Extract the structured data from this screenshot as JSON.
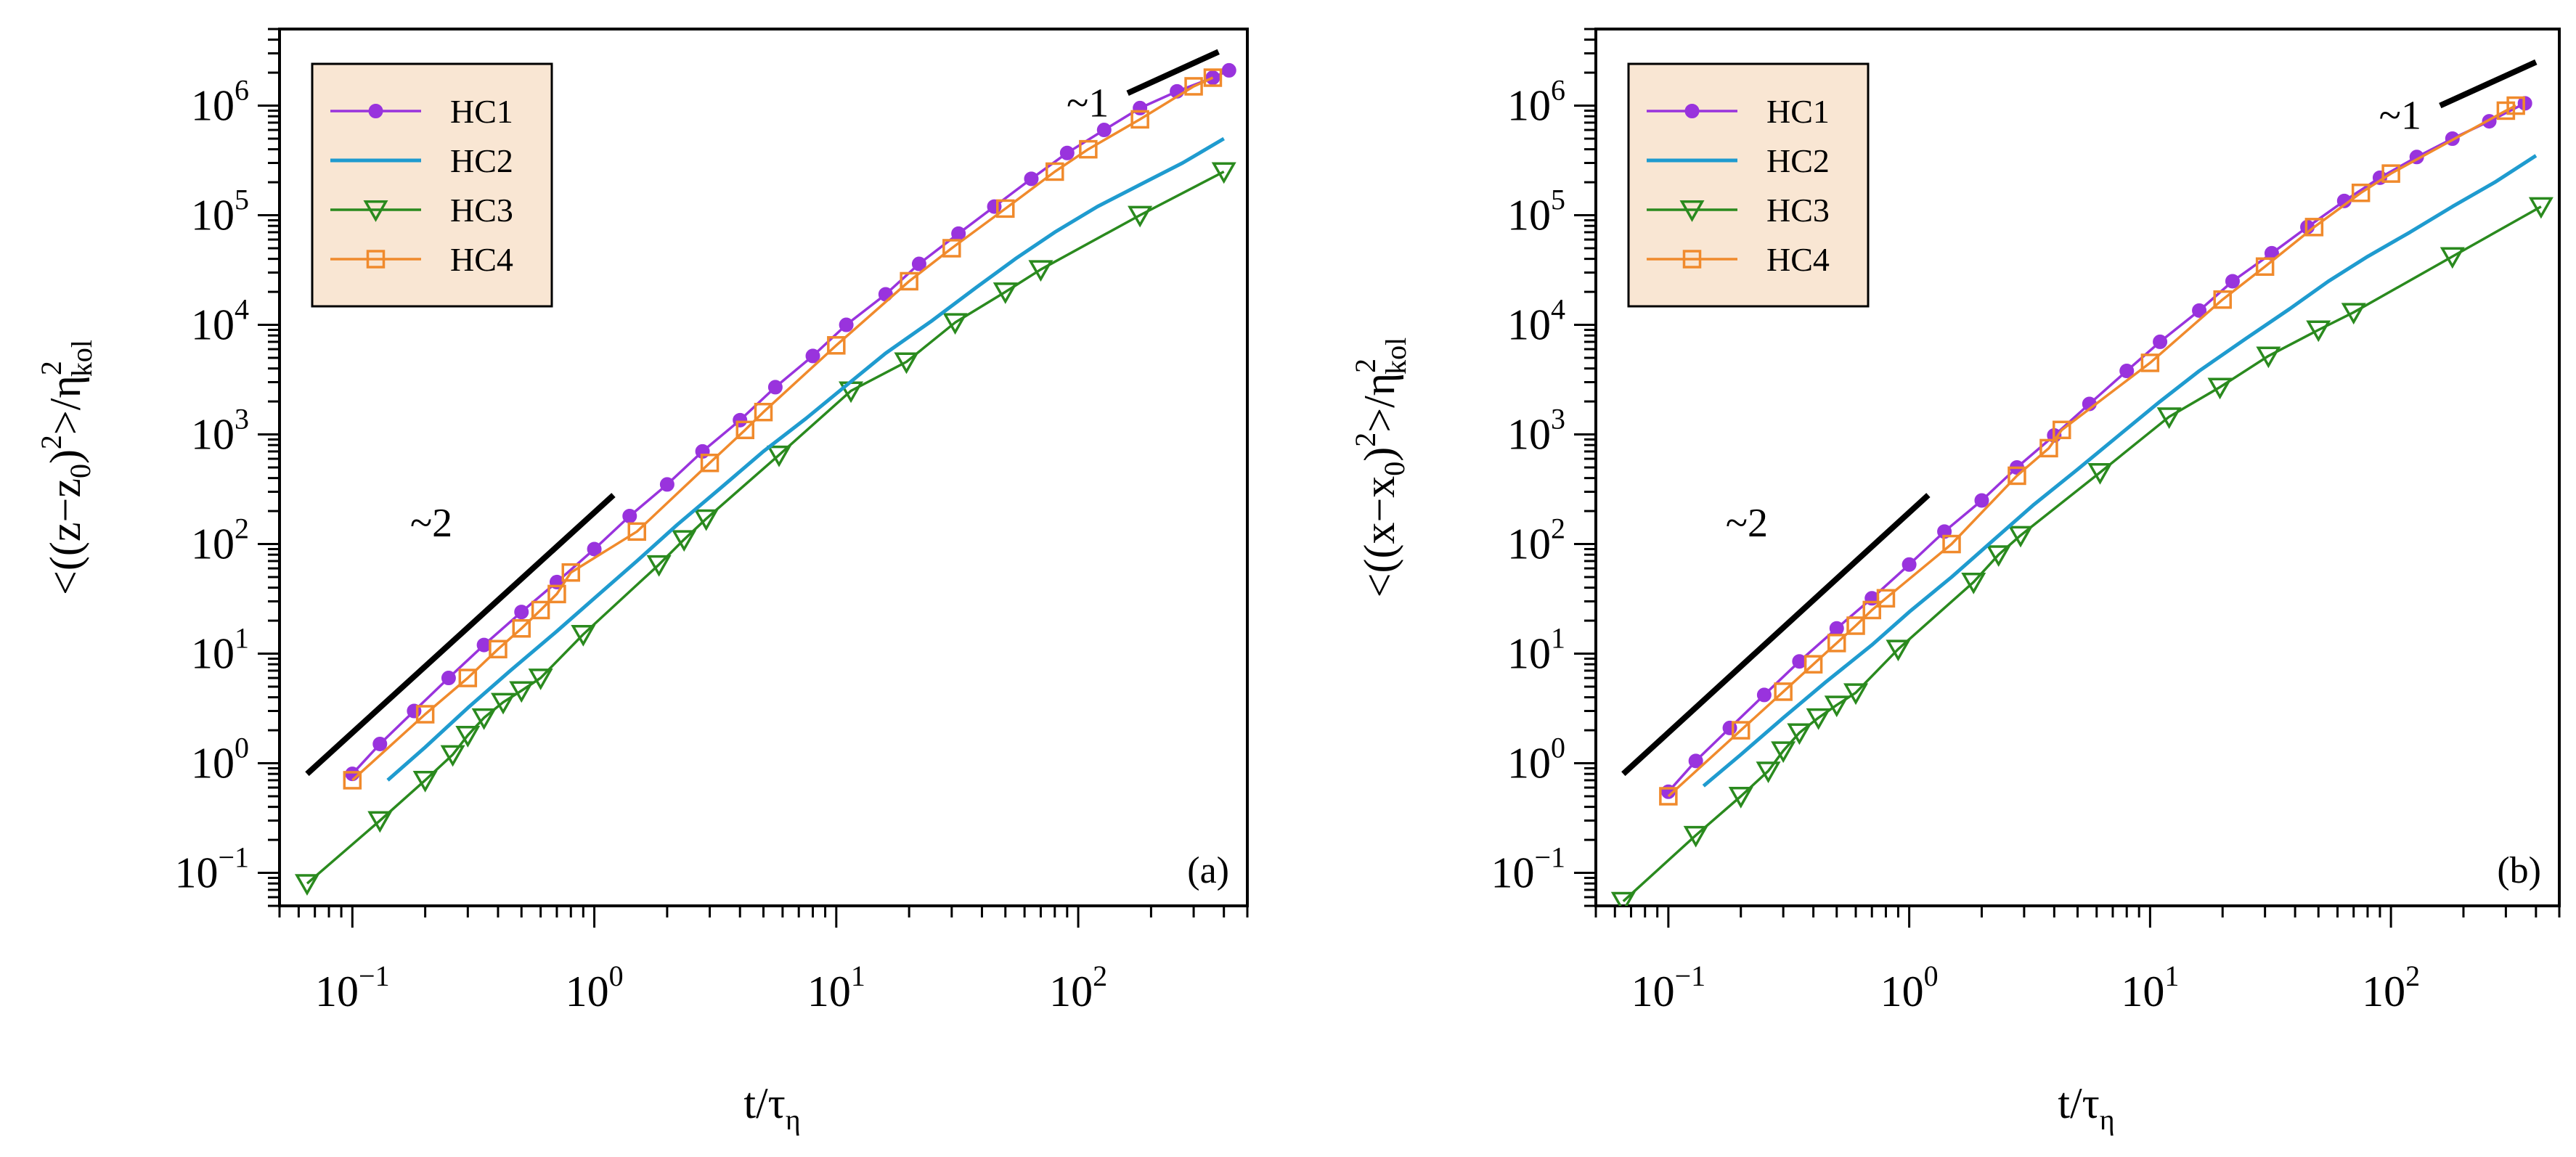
{
  "chart_data": [
    {
      "type": "line",
      "panel_label": "(a)",
      "xlabel": {
        "base": "t/τ",
        "sub": "η"
      },
      "ylabel": {
        "pre": "<((z−z",
        "sub0": "0",
        "mid": ")",
        "sup": "2",
        "post": ">/η",
        "sub": "kol",
        "sup2": "2"
      },
      "xscale": "log",
      "yscale": "log",
      "xlim": [
        0.05,
        500
      ],
      "ylim": [
        0.05,
        5000000
      ],
      "xticks": [
        {
          "base": "10",
          "exp": "−1",
          "value": 0.1
        },
        {
          "base": "10",
          "exp": "0",
          "value": 1
        },
        {
          "base": "10",
          "exp": "1",
          "value": 10
        },
        {
          "base": "10",
          "exp": "2",
          "value": 100
        }
      ],
      "yticks": [
        {
          "base": "10",
          "exp": "−1",
          "value": 0.1
        },
        {
          "base": "10",
          "exp": "0",
          "value": 1
        },
        {
          "base": "10",
          "exp": "1",
          "value": 10
        },
        {
          "base": "10",
          "exp": "2",
          "value": 100
        },
        {
          "base": "10",
          "exp": "3",
          "value": 1000
        },
        {
          "base": "10",
          "exp": "4",
          "value": 10000
        },
        {
          "base": "10",
          "exp": "5",
          "value": 100000
        },
        {
          "base": "10",
          "exp": "6",
          "value": 1000000
        }
      ],
      "legend": {
        "position": "top-left",
        "entries": [
          "HC1",
          "HC2",
          "HC3",
          "HC4"
        ]
      },
      "series": [
        {
          "name": "HC1",
          "color": "#9933dd",
          "marker": "circle",
          "x": [
            0.1,
            0.13,
            0.18,
            0.25,
            0.35,
            0.5,
            0.7,
            1.0,
            1.4,
            2.0,
            2.8,
            4.0,
            5.6,
            8.0,
            11,
            16,
            22,
            32,
            45,
            64,
            90,
            128,
            180,
            256,
            360,
            420
          ],
          "y": [
            0.8,
            1.5,
            3.0,
            6.0,
            12,
            24,
            45,
            90,
            180,
            350,
            700,
            1350,
            2700,
            5200,
            10000,
            19000,
            36000,
            68000,
            120000,
            215000,
            370000,
            600000,
            950000,
            1350000,
            1800000,
            2100000
          ]
        },
        {
          "name": "HC2",
          "color": "#1f9bcf",
          "marker": "none",
          "x": [
            0.14,
            0.2,
            0.3,
            0.45,
            0.7,
            1.0,
            1.5,
            2.2,
            3.3,
            5,
            7.5,
            11,
            16,
            25,
            38,
            55,
            80,
            120,
            180,
            270,
            400
          ],
          "y": [
            0.7,
            1.4,
            3.2,
            7,
            16,
            32,
            70,
            150,
            320,
            700,
            1400,
            2800,
            5500,
            11000,
            22000,
            40000,
            70000,
            120000,
            190000,
            300000,
            500000
          ]
        },
        {
          "name": "HC3",
          "color": "#2a8a1e",
          "marker": "triangle-down",
          "x": [
            0.065,
            0.13,
            0.2,
            0.26,
            0.3,
            0.35,
            0.42,
            0.5,
            0.6,
            0.9,
            1.85,
            2.35,
            2.9,
            5.8,
            11.5,
            19.5,
            31,
            50,
            70,
            180,
            400
          ],
          "y": [
            0.08,
            0.3,
            0.7,
            1.2,
            1.8,
            2.6,
            3.6,
            4.6,
            6.0,
            15,
            65,
            110,
            170,
            650,
            2500,
            4600,
            10500,
            20000,
            32000,
            100000,
            250000
          ]
        },
        {
          "name": "HC4",
          "color": "#f08a2c",
          "marker": "square",
          "x": [
            0.1,
            0.2,
            0.3,
            0.4,
            0.5,
            0.6,
            0.7,
            0.8,
            1.5,
            3.0,
            4.2,
            5.0,
            10,
            20,
            30,
            50,
            80,
            110,
            180,
            300,
            360
          ],
          "y": [
            0.7,
            2.8,
            6.0,
            11,
            17,
            25,
            35,
            55,
            130,
            550,
            1100,
            1600,
            6500,
            25000,
            50000,
            115000,
            250000,
            400000,
            750000,
            1500000,
            1800000
          ]
        }
      ],
      "reference_lines": [
        {
          "label": "~2",
          "slope": 2,
          "x": [
            0.065,
            1.2
          ],
          "y": [
            0.8,
            280
          ]
        },
        {
          "label": "~1",
          "slope": 1,
          "x": [
            160,
            380
          ],
          "y": [
            1300000,
            3100000
          ]
        }
      ]
    },
    {
      "type": "line",
      "panel_label": "(b)",
      "xlabel": {
        "base": "t/τ",
        "sub": "η"
      },
      "ylabel": {
        "pre": "<((x−x",
        "sub0": "0",
        "mid": ")",
        "sup": "2",
        "post": ">/η",
        "sub": "kol",
        "sup2": "2"
      },
      "xscale": "log",
      "yscale": "log",
      "xlim": [
        0.05,
        500
      ],
      "ylim": [
        0.05,
        5000000
      ],
      "xticks": [
        {
          "base": "10",
          "exp": "−1",
          "value": 0.1
        },
        {
          "base": "10",
          "exp": "0",
          "value": 1
        },
        {
          "base": "10",
          "exp": "1",
          "value": 10
        },
        {
          "base": "10",
          "exp": "2",
          "value": 100
        }
      ],
      "yticks": [
        {
          "base": "10",
          "exp": "−1",
          "value": 0.1
        },
        {
          "base": "10",
          "exp": "0",
          "value": 1
        },
        {
          "base": "10",
          "exp": "1",
          "value": 10
        },
        {
          "base": "10",
          "exp": "2",
          "value": 100
        },
        {
          "base": "10",
          "exp": "3",
          "value": 1000
        },
        {
          "base": "10",
          "exp": "4",
          "value": 10000
        },
        {
          "base": "10",
          "exp": "5",
          "value": 100000
        },
        {
          "base": "10",
          "exp": "6",
          "value": 1000000
        }
      ],
      "legend": {
        "position": "top-left",
        "entries": [
          "HC1",
          "HC2",
          "HC3",
          "HC4"
        ]
      },
      "series": [
        {
          "name": "HC1",
          "color": "#9933dd",
          "marker": "circle",
          "x": [
            0.1,
            0.13,
            0.18,
            0.25,
            0.35,
            0.5,
            0.7,
            1.0,
            1.4,
            2.0,
            2.8,
            4.0,
            5.6,
            8.0,
            11,
            16,
            22,
            32,
            45,
            64,
            90,
            128,
            180,
            256,
            360
          ],
          "y": [
            0.55,
            1.05,
            2.1,
            4.2,
            8.5,
            17,
            32,
            65,
            130,
            250,
            500,
            980,
            1900,
            3800,
            7000,
            13500,
            25000,
            45000,
            78000,
            135000,
            220000,
            340000,
            500000,
            720000,
            1050000
          ]
        },
        {
          "name": "HC2",
          "color": "#1f9bcf",
          "marker": "none",
          "x": [
            0.14,
            0.2,
            0.3,
            0.45,
            0.7,
            1.0,
            1.5,
            2.2,
            3.3,
            5,
            7.5,
            11,
            16,
            25,
            38,
            55,
            80,
            120,
            180,
            270,
            400
          ],
          "y": [
            0.62,
            1.2,
            2.6,
            5.5,
            12,
            24,
            50,
            105,
            230,
            480,
            1000,
            2000,
            3800,
            7500,
            14000,
            25000,
            42000,
            70000,
            120000,
            200000,
            350000
          ]
        },
        {
          "name": "HC3",
          "color": "#2a8a1e",
          "marker": "triangle-down",
          "x": [
            0.065,
            0.13,
            0.2,
            0.26,
            0.3,
            0.35,
            0.42,
            0.5,
            0.6,
            0.9,
            1.85,
            2.35,
            2.9,
            6.2,
            12,
            19.5,
            31,
            50,
            70,
            180,
            420
          ],
          "y": [
            0.055,
            0.22,
            0.5,
            0.85,
            1.3,
            1.9,
            2.6,
            3.4,
            4.4,
            11,
            45,
            80,
            120,
            450,
            1450,
            2700,
            5200,
            9000,
            13000,
            42000,
            120000
          ]
        },
        {
          "name": "HC4",
          "color": "#f08a2c",
          "marker": "square",
          "x": [
            0.1,
            0.2,
            0.3,
            0.4,
            0.5,
            0.6,
            0.7,
            0.8,
            1.5,
            2.8,
            3.8,
            4.3,
            10,
            20,
            30,
            48,
            75,
            100,
            300,
            330
          ],
          "y": [
            0.5,
            2.0,
            4.5,
            8.0,
            12.5,
            18,
            25,
            32,
            100,
            420,
            750,
            1100,
            4500,
            17000,
            34000,
            78000,
            160000,
            240000,
            900000,
            1000000
          ]
        }
      ],
      "reference_lines": [
        {
          "label": "~2",
          "slope": 2,
          "x": [
            0.065,
            1.2
          ],
          "y": [
            0.8,
            280
          ]
        },
        {
          "label": "~1",
          "slope": 1,
          "x": [
            160,
            400
          ],
          "y": [
            1000000,
            2500000
          ]
        }
      ]
    }
  ]
}
